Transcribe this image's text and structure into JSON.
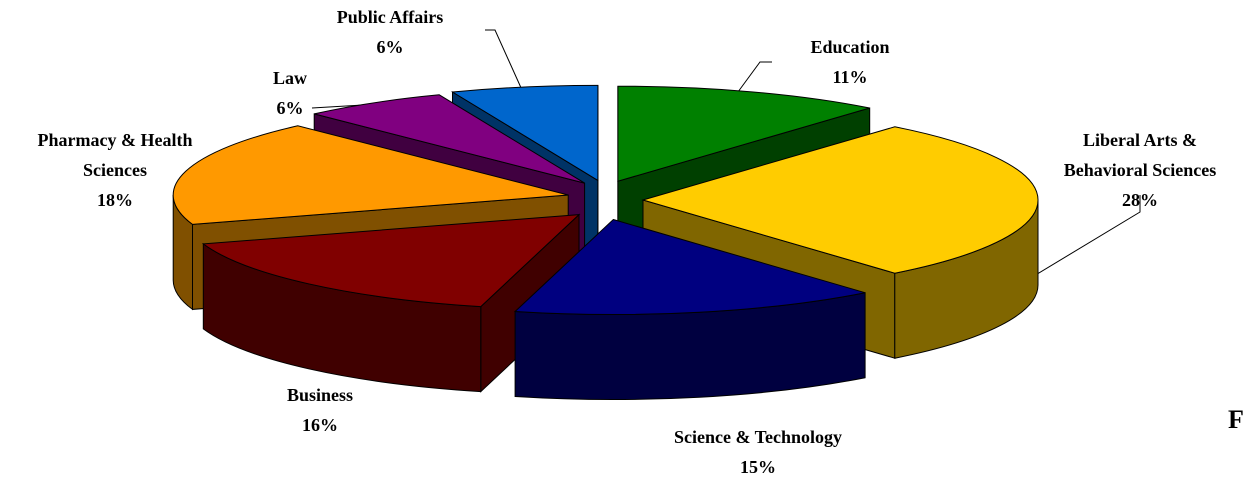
{
  "chart_data": {
    "type": "pie3d",
    "categories": [
      "Education",
      "Liberal Arts & Behavioral Sciences",
      "Science & Technology",
      "Business",
      "Pharmacy & Health Sciences",
      "Law",
      "Public Affairs"
    ],
    "values": [
      11,
      28,
      15,
      16,
      18,
      6,
      6
    ],
    "value_labels": [
      "11%",
      "28%",
      "15%",
      "16%",
      "18%",
      "6%",
      "6%"
    ],
    "colors": [
      "#008000",
      "#ffcc00",
      "#000080",
      "#800000",
      "#ff9900",
      "#800080",
      "#0066cc"
    ],
    "side_colors": [
      "#004000",
      "#806600",
      "#000040",
      "#400000",
      "#805000",
      "#400040",
      "#003366"
    ],
    "edge_text": "F"
  }
}
